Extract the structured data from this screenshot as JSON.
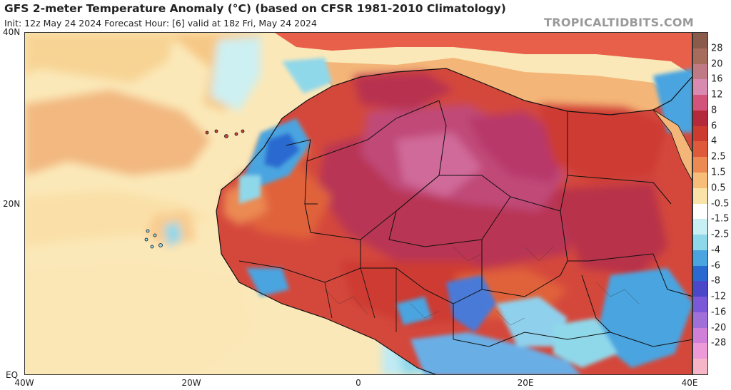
{
  "title": "GFS 2-meter Temperature Anomaly (°C) (based on CFSR 1981-2010 Climatology)",
  "subtitle": "Init: 12z May 24 2024   Forecast Hour: [6]   valid at 18z Fri, May 24 2024",
  "credit": "TROPICALTIDBITS.COM",
  "map": {
    "lat_labels": [
      "40N",
      "20N",
      "EQ"
    ],
    "lon_labels": [
      "40W",
      "20W",
      "0",
      "20E",
      "40E"
    ],
    "lon_range": [
      -40,
      40
    ],
    "lat_range": [
      0,
      40
    ],
    "country_borders": "thin black lines",
    "ocean_color": "#fbe8b8"
  },
  "colorbar": {
    "labels": [
      "28",
      "20",
      "16",
      "12",
      "8",
      "6",
      "4",
      "2.5",
      "1.5",
      "0.5",
      "-0.5",
      "-1.5",
      "-2.5",
      "-4",
      "-6",
      "-8",
      "-12",
      "-16",
      "-20",
      "-28"
    ],
    "colors": [
      "#8a5a4a",
      "#a86c5c",
      "#c07a86",
      "#d88ab0",
      "#d2547a",
      "#b42a3a",
      "#cd3b30",
      "#de5a3a",
      "#ec8a52",
      "#f6be78",
      "#fae3a8",
      "#ffffff",
      "#c8f0f4",
      "#8fd8ea",
      "#4aa4e0",
      "#2a6ad0",
      "#4a48c8",
      "#7a58d8",
      "#a070d8",
      "#d080d8",
      "#ee9ad8",
      "#f6b6c8"
    ]
  }
}
